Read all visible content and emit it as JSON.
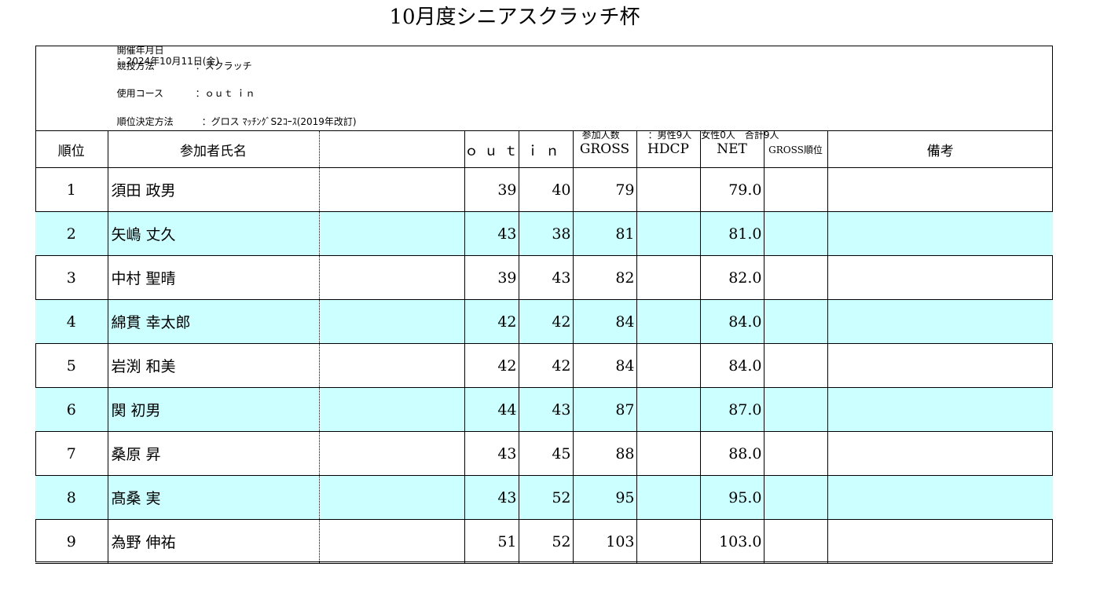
{
  "title": "10月度シニアスクラッチ杯",
  "info": {
    "date_label": "開催年月日",
    "date_value": "：2024年10月11日(金)",
    "format_label": "競技方法",
    "format_value": "：スクラッチ",
    "course_label": "使用コース",
    "course_value": "：ｏｕｔ ｉｎ",
    "ranking_label": "順位決定方法",
    "ranking_value": "：グロス ﾏｯﾁﾝｸﾞS2ｺｰｽ(2019年改訂)",
    "participants_label": "参加人数",
    "participants_value": "：男性9人　女性0人　合計9人"
  },
  "table": {
    "headers": {
      "rank": "順位",
      "name": "参加者氏名",
      "blank": "",
      "out": "ｏｕｔ",
      "in": "ｉｎ",
      "gross": "GROSS",
      "hdcp": "HDCP",
      "net": "NET",
      "gross_rank": "GROSS順位",
      "remarks": "備考"
    },
    "rows": [
      {
        "rank": "1",
        "name": "須田 政男",
        "blank": "",
        "out": "39",
        "in": "40",
        "gross": "79",
        "hdcp": "",
        "net": "79.0",
        "gross_rank": "",
        "remarks": ""
      },
      {
        "rank": "2",
        "name": "矢嶋 丈久",
        "blank": "",
        "out": "43",
        "in": "38",
        "gross": "81",
        "hdcp": "",
        "net": "81.0",
        "gross_rank": "",
        "remarks": ""
      },
      {
        "rank": "3",
        "name": "中村 聖晴",
        "blank": "",
        "out": "39",
        "in": "43",
        "gross": "82",
        "hdcp": "",
        "net": "82.0",
        "gross_rank": "",
        "remarks": ""
      },
      {
        "rank": "4",
        "name": "綿貫 幸太郎",
        "blank": "",
        "out": "42",
        "in": "42",
        "gross": "84",
        "hdcp": "",
        "net": "84.0",
        "gross_rank": "",
        "remarks": ""
      },
      {
        "rank": "5",
        "name": "岩渕 和美",
        "blank": "",
        "out": "42",
        "in": "42",
        "gross": "84",
        "hdcp": "",
        "net": "84.0",
        "gross_rank": "",
        "remarks": ""
      },
      {
        "rank": "6",
        "name": "関 初男",
        "blank": "",
        "out": "44",
        "in": "43",
        "gross": "87",
        "hdcp": "",
        "net": "87.0",
        "gross_rank": "",
        "remarks": ""
      },
      {
        "rank": "7",
        "name": "桑原 昇",
        "blank": "",
        "out": "43",
        "in": "45",
        "gross": "88",
        "hdcp": "",
        "net": "88.0",
        "gross_rank": "",
        "remarks": ""
      },
      {
        "rank": "8",
        "name": "髙桑 実",
        "blank": "",
        "out": "43",
        "in": "52",
        "gross": "95",
        "hdcp": "",
        "net": "95.0",
        "gross_rank": "",
        "remarks": ""
      },
      {
        "rank": "9",
        "name": "為野 伸祐",
        "blank": "",
        "out": "51",
        "in": "52",
        "gross": "103",
        "hdcp": "",
        "net": "103.0",
        "gross_rank": "",
        "remarks": ""
      }
    ]
  },
  "colors": {
    "alt_row": "#ccffff",
    "border": "#000000"
  }
}
